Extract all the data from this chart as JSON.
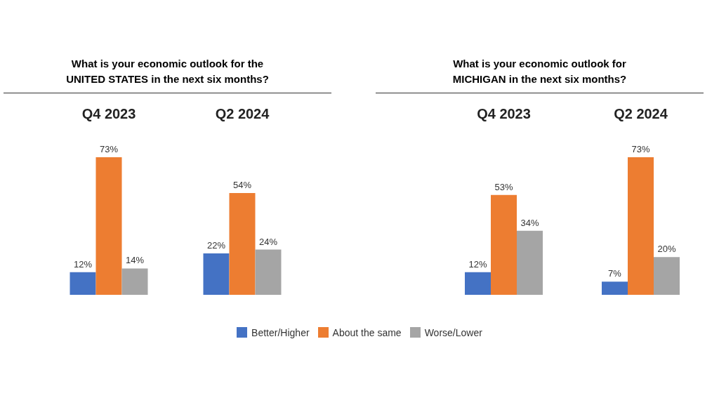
{
  "chart_data": [
    {
      "type": "bar",
      "title": "What is your economic outlook for the\nUNITED STATES in the next six months?",
      "categories": [
        "Q4 2023",
        "Q2 2024"
      ],
      "legend": "bottom",
      "series": [
        {
          "name": "Better/Higher",
          "color": "#4472c4",
          "values": [
            12,
            22
          ],
          "value_labels": [
            "12%",
            "22%"
          ]
        },
        {
          "name": "About the same",
          "color": "#ed7d31",
          "values": [
            73,
            54
          ],
          "value_labels": [
            "73%",
            "54%"
          ]
        },
        {
          "name": "Worse/Lower",
          "color": "#a5a5a5",
          "values": [
            14,
            24
          ],
          "value_labels": [
            "14%",
            "24%"
          ]
        }
      ]
    },
    {
      "type": "bar",
      "title": "What is your economic outlook for\nMICHIGAN in the next six months?",
      "categories": [
        "Q4 2023",
        "Q2 2024"
      ],
      "series": [
        {
          "color": "#4472c4",
          "values": [
            12,
            7
          ],
          "value_labels": [
            "12%",
            "7%"
          ]
        },
        {
          "color": "#ed7d31",
          "values": [
            53,
            73
          ],
          "value_labels": [
            "53%",
            "73%"
          ]
        },
        {
          "color": "#a5a5a5",
          "values": [
            34,
            20
          ],
          "value_labels": [
            "34%",
            "20%"
          ]
        }
      ]
    }
  ]
}
